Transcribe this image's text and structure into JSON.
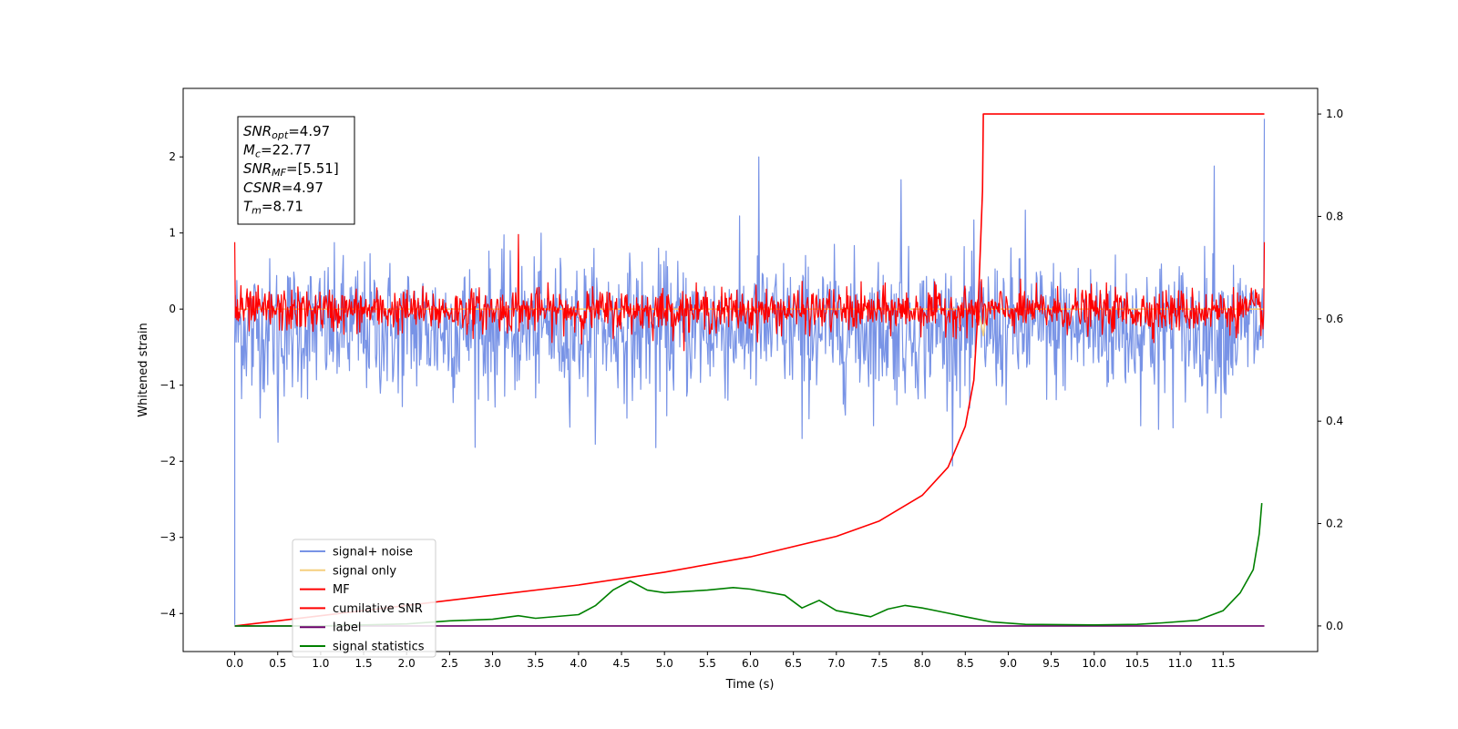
{
  "chart_data": {
    "type": "line",
    "title": "",
    "xlabel": "Time (s)",
    "ylabel": "Whitened strain",
    "y2label": "",
    "xlim": [
      -0.6,
      12.6
    ],
    "ylim": [
      -4.5,
      2.9
    ],
    "y2lim": [
      -0.05,
      1.05
    ],
    "grid": false,
    "x_ticks": [
      "0.0",
      "0.5",
      "1.0",
      "1.5",
      "2.0",
      "2.5",
      "3.0",
      "3.5",
      "4.0",
      "4.5",
      "5.0",
      "5.5",
      "6.0",
      "6.5",
      "7.0",
      "7.5",
      "8.0",
      "8.5",
      "9.0",
      "9.5",
      "10.0",
      "10.5",
      "11.0",
      "11.5"
    ],
    "y_ticks": [
      "2",
      "1",
      "0",
      "−1",
      "−2",
      "−3",
      "−4"
    ],
    "y2_ticks": [
      "1.0",
      "0.8",
      "0.6",
      "0.4",
      "0.2",
      "0.0"
    ],
    "annotation": {
      "lines": [
        {
          "sym": "SNR",
          "sub": "opt",
          "value": "=4.97"
        },
        {
          "sym": "M",
          "sub": "c",
          "value": "=22.77"
        },
        {
          "sym": "SNR",
          "sub": "MF",
          "value": "=[5.51]"
        },
        {
          "sym": "CSNR",
          "sub": "",
          "value": "=4.97"
        },
        {
          "sym": "T",
          "sub": "m",
          "value": "=8.71"
        }
      ]
    },
    "legend": {
      "placement": "lower-left",
      "entries": [
        {
          "name": "signal+ noise",
          "color": "#7893e6"
        },
        {
          "name": "signal only",
          "color": "#f5cf7f"
        },
        {
          "name": "MF",
          "color": "#ff0000"
        },
        {
          "name": "cumilative SNR",
          "color": "#ff0000"
        },
        {
          "name": "label",
          "color": "#6a006a"
        },
        {
          "name": "signal statistics",
          "color": "#008000"
        }
      ]
    },
    "series": [
      {
        "name": "signal+ noise",
        "axis": "left",
        "color": "#7893e6",
        "style": "noise",
        "x_range": [
          0.0,
          11.98
        ],
        "mean": -0.25,
        "std": 0.45,
        "peaks": [
          [
            0.2,
            -1.0
          ],
          [
            0.5,
            -1.75
          ],
          [
            1.9,
            -1.1
          ],
          [
            4.9,
            -1.82
          ],
          [
            6.1,
            2.0
          ],
          [
            6.6,
            -1.7
          ],
          [
            7.75,
            1.7
          ],
          [
            8.55,
            -1.3
          ],
          [
            9.2,
            1.3
          ],
          [
            10.75,
            -1.58
          ],
          [
            11.4,
            1.88
          ],
          [
            11.98,
            2.5
          ]
        ],
        "start_dip": [
          0.0,
          -4.15
        ]
      },
      {
        "name": "signal only",
        "axis": "left",
        "color": "#f5cf7f",
        "style": "line",
        "points": [
          [
            0.0,
            0.0
          ],
          [
            8.6,
            0.0
          ],
          [
            8.67,
            -0.1
          ],
          [
            8.71,
            -0.35
          ],
          [
            8.75,
            0.0
          ],
          [
            11.98,
            0.0
          ]
        ]
      },
      {
        "name": "MF",
        "axis": "left",
        "color": "#ff0000",
        "style": "noise",
        "x_range": [
          0.0,
          11.98
        ],
        "mean": -0.02,
        "std": 0.14,
        "peaks": [
          [
            0.0,
            0.88
          ],
          [
            3.3,
            0.98
          ],
          [
            11.98,
            0.88
          ]
        ]
      },
      {
        "name": "cumilative SNR",
        "axis": "right",
        "color": "#ff0000",
        "style": "line",
        "points": [
          [
            0.0,
            0.0
          ],
          [
            0.5,
            0.01
          ],
          [
            1.0,
            0.02
          ],
          [
            2.0,
            0.04
          ],
          [
            3.0,
            0.06
          ],
          [
            4.0,
            0.08
          ],
          [
            5.0,
            0.105
          ],
          [
            6.0,
            0.135
          ],
          [
            7.0,
            0.175
          ],
          [
            7.5,
            0.205
          ],
          [
            8.0,
            0.255
          ],
          [
            8.3,
            0.31
          ],
          [
            8.5,
            0.39
          ],
          [
            8.6,
            0.48
          ],
          [
            8.65,
            0.62
          ],
          [
            8.7,
            0.85
          ],
          [
            8.71,
            1.0
          ],
          [
            11.98,
            1.0
          ]
        ]
      },
      {
        "name": "label",
        "axis": "right",
        "color": "#6a006a",
        "style": "line",
        "points": [
          [
            0.0,
            0.0
          ],
          [
            11.98,
            0.0
          ]
        ]
      },
      {
        "name": "signal statistics",
        "axis": "right",
        "color": "#008000",
        "style": "line",
        "points": [
          [
            0.0,
            0.0
          ],
          [
            1.0,
            0.0
          ],
          [
            1.5,
            0.002
          ],
          [
            2.0,
            0.004
          ],
          [
            2.5,
            0.01
          ],
          [
            3.0,
            0.013
          ],
          [
            3.3,
            0.02
          ],
          [
            3.5,
            0.015
          ],
          [
            4.0,
            0.022
          ],
          [
            4.2,
            0.04
          ],
          [
            4.4,
            0.07
          ],
          [
            4.6,
            0.088
          ],
          [
            4.8,
            0.07
          ],
          [
            5.0,
            0.065
          ],
          [
            5.5,
            0.07
          ],
          [
            5.8,
            0.075
          ],
          [
            6.0,
            0.072
          ],
          [
            6.4,
            0.06
          ],
          [
            6.6,
            0.035
          ],
          [
            6.8,
            0.05
          ],
          [
            7.0,
            0.03
          ],
          [
            7.4,
            0.018
          ],
          [
            7.6,
            0.033
          ],
          [
            7.8,
            0.04
          ],
          [
            8.0,
            0.035
          ],
          [
            8.3,
            0.025
          ],
          [
            8.5,
            0.018
          ],
          [
            8.8,
            0.008
          ],
          [
            9.2,
            0.003
          ],
          [
            10.0,
            0.002
          ],
          [
            10.5,
            0.003
          ],
          [
            10.8,
            0.006
          ],
          [
            11.2,
            0.011
          ],
          [
            11.5,
            0.03
          ],
          [
            11.7,
            0.065
          ],
          [
            11.85,
            0.11
          ],
          [
            11.92,
            0.18
          ],
          [
            11.95,
            0.24
          ]
        ]
      }
    ]
  }
}
